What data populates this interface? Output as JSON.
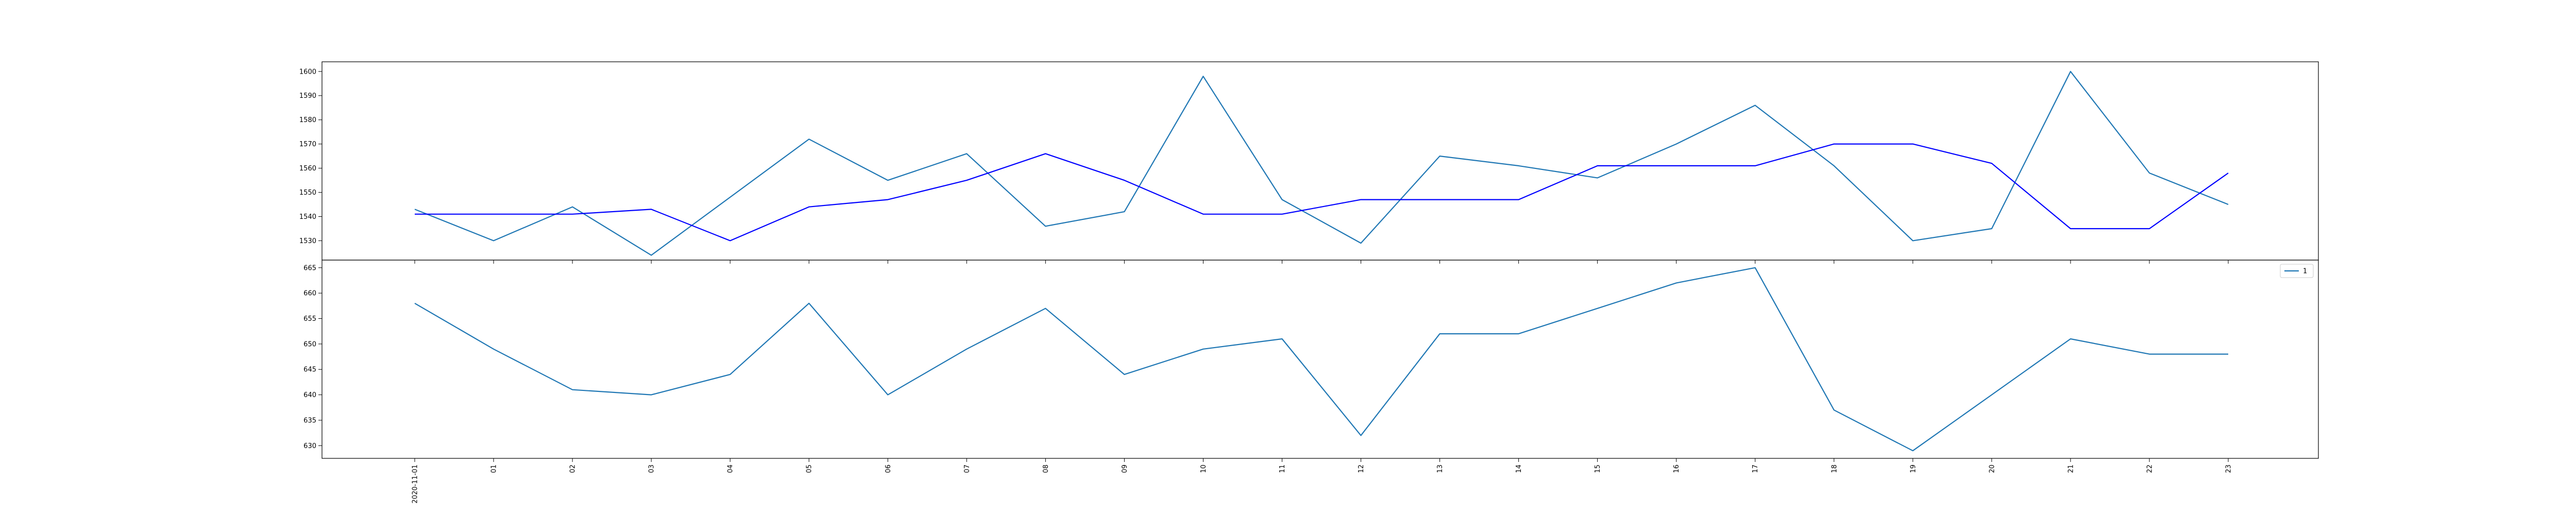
{
  "chart_data": [
    {
      "type": "line",
      "panel": "top",
      "x": [
        "2020-11-01",
        "01",
        "02",
        "03",
        "04",
        "05",
        "06",
        "07",
        "08",
        "09",
        "10",
        "11",
        "12",
        "13",
        "14",
        "15",
        "16",
        "17",
        "18",
        "19",
        "20",
        "21",
        "22",
        "23"
      ],
      "yticks": [
        1530,
        1540,
        1550,
        1560,
        1570,
        1580,
        1590,
        1600
      ],
      "ylim": [
        1522,
        1604
      ],
      "grid": false,
      "series": [
        {
          "color": "#1f77b4",
          "values": [
            1543,
            1530,
            1544,
            1524,
            1548,
            1572,
            1555,
            1566,
            1536,
            1542,
            1598,
            1547,
            1529,
            1565,
            1561,
            1556,
            1570,
            1586,
            1561,
            1530,
            1535,
            1600,
            1558,
            1545
          ]
        },
        {
          "color": "#0000ff",
          "values": [
            1541,
            1541,
            1541,
            1543,
            1530,
            1544,
            1547,
            1555,
            1566,
            1555,
            1541,
            1541,
            1547,
            1547,
            1547,
            1561,
            1561,
            1561,
            1570,
            1570,
            1562,
            1535,
            1535,
            1558
          ]
        }
      ]
    },
    {
      "type": "line",
      "panel": "bottom",
      "x": [
        "2020-11-01",
        "01",
        "02",
        "03",
        "04",
        "05",
        "06",
        "07",
        "08",
        "09",
        "10",
        "11",
        "12",
        "13",
        "14",
        "15",
        "16",
        "17",
        "18",
        "19",
        "20",
        "21",
        "22",
        "23"
      ],
      "xtick_labels": [
        "2020-11-01",
        "01",
        "02",
        "03",
        "04",
        "05",
        "06",
        "07",
        "08",
        "09",
        "10",
        "11",
        "12",
        "13",
        "14",
        "15",
        "16",
        "17",
        "18",
        "19",
        "20",
        "21",
        "22",
        "23"
      ],
      "yticks": [
        630,
        635,
        640,
        645,
        650,
        655,
        660,
        665
      ],
      "ylim": [
        627.5,
        666.5
      ],
      "grid": false,
      "legend": {
        "placement": "top-right",
        "entries": [
          "1"
        ]
      },
      "series": [
        {
          "name": "1",
          "color": "#1f77b4",
          "values": [
            658,
            649,
            641,
            640,
            644,
            658,
            640,
            649,
            657,
            644,
            649,
            651,
            632,
            652,
            652,
            657,
            662,
            665,
            637,
            629,
            640,
            651,
            648,
            648
          ]
        }
      ]
    }
  ]
}
